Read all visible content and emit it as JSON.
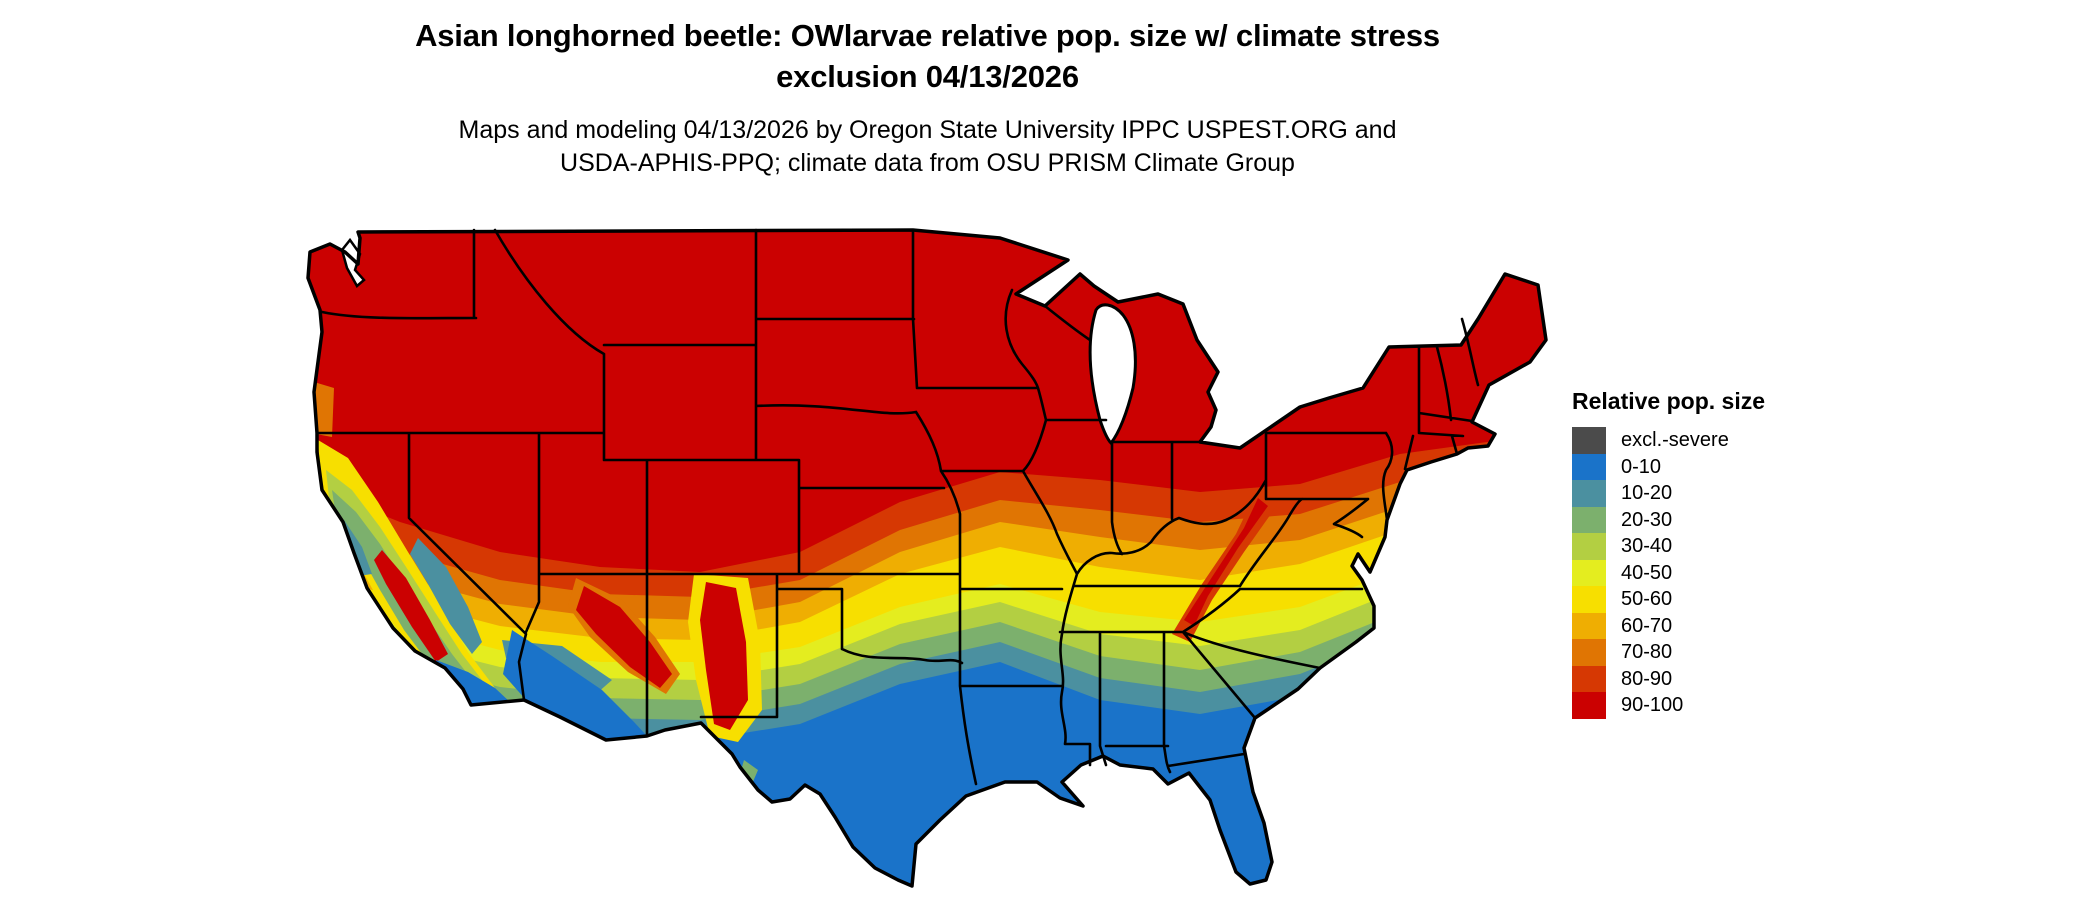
{
  "title": "Asian longhorned beetle: OWlarvae relative pop. size w/ climate stress exclusion 04/13/2026",
  "subtitle": "Maps and modeling 04/13/2026 by Oregon State University IPPC USPEST.ORG and USDA-APHIS-PPQ; climate data from OSU PRISM Climate Group",
  "legend": {
    "title": "Relative pop. size",
    "entries": [
      {
        "key": "excl-severe",
        "label": "excl.-severe",
        "color": "#4b4b4b"
      },
      {
        "key": "0-10",
        "label": "0-10",
        "color": "#1a73c9"
      },
      {
        "key": "10-20",
        "label": "10-20",
        "color": "#4b90a0"
      },
      {
        "key": "20-30",
        "label": "20-30",
        "color": "#7cb06d"
      },
      {
        "key": "30-40",
        "label": "30-40",
        "color": "#b3cf42"
      },
      {
        "key": "40-50",
        "label": "40-50",
        "color": "#e4ed1f"
      },
      {
        "key": "50-60",
        "label": "50-60",
        "color": "#f7df00"
      },
      {
        "key": "60-70",
        "label": "60-70",
        "color": "#efae02"
      },
      {
        "key": "70-80",
        "label": "70-80",
        "color": "#e07503"
      },
      {
        "key": "80-90",
        "label": "80-90",
        "color": "#d63803"
      },
      {
        "key": "90-100",
        "label": "90-100",
        "color": "#cb0101"
      }
    ]
  },
  "map": {
    "type": "us-conus-choropleth-raster",
    "border_color": "#000000",
    "water_color": "#ffffff",
    "gradient_north_to_south": [
      "90-100",
      "80-90",
      "70-80",
      "60-70",
      "50-60",
      "40-50",
      "30-40",
      "20-30",
      "10-20",
      "0-10"
    ],
    "notes": "Northern states solid 90-100 red; bands step down to 0-10 blue along Gulf Coast, Florida, south Texas, southwest deserts and coastal/central California."
  }
}
